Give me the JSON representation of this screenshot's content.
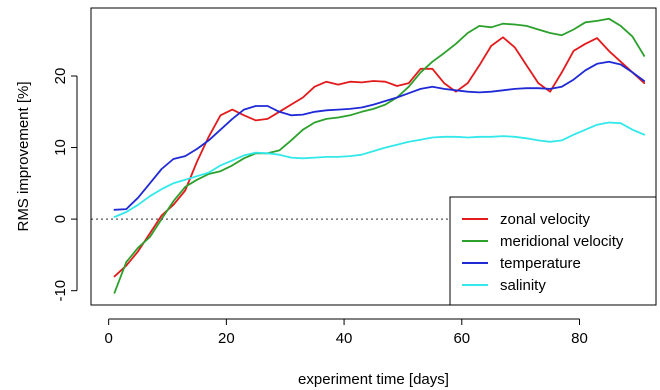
{
  "chart_data": {
    "type": "line",
    "title": "",
    "xlabel": "experiment time [days]",
    "ylabel": "RMS improvement [%]",
    "xlim": [
      -3,
      93
    ],
    "ylim": [
      -12,
      29.5
    ],
    "x_ticks": [
      0,
      20,
      40,
      60,
      80
    ],
    "y_ticks": [
      -10,
      0,
      10,
      20
    ],
    "reference_line": {
      "y": 0,
      "style": "dotted",
      "color": "#555555"
    },
    "grid": false,
    "legend_position": "bottom-right",
    "series": [
      {
        "name": "zonal velocity",
        "color": "#e31a1c",
        "x": [
          1,
          3,
          5,
          7,
          9,
          11,
          13,
          15,
          17,
          19,
          21,
          23,
          25,
          27,
          29,
          31,
          33,
          35,
          37,
          39,
          41,
          43,
          45,
          47,
          49,
          51,
          53,
          55,
          57,
          59,
          61,
          63,
          65,
          67,
          69,
          71,
          73,
          75,
          77,
          79,
          81,
          83,
          85,
          87,
          89,
          91
        ],
        "y": [
          -8,
          -6.5,
          -4.5,
          -2,
          0.5,
          2,
          4,
          8,
          11.5,
          14.5,
          15.3,
          14.5,
          13.8,
          14,
          15,
          16,
          17,
          18.5,
          19.2,
          18.8,
          19.2,
          19.1,
          19.3,
          19.2,
          18.6,
          19,
          21,
          21,
          19,
          17.8,
          19,
          21.5,
          24.2,
          25.4,
          24,
          21.5,
          19,
          17.8,
          20.5,
          23.5,
          24.5,
          25.3,
          23.5,
          22,
          20.5,
          19
        ]
      },
      {
        "name": "meridional velocity",
        "color": "#2ca02c",
        "x": [
          1,
          3,
          5,
          7,
          9,
          11,
          13,
          15,
          17,
          19,
          21,
          23,
          25,
          27,
          29,
          31,
          33,
          35,
          37,
          39,
          41,
          43,
          45,
          47,
          49,
          51,
          53,
          55,
          57,
          59,
          61,
          63,
          65,
          67,
          69,
          71,
          73,
          75,
          77,
          79,
          81,
          83,
          85,
          87,
          89,
          91
        ],
        "y": [
          -10.3,
          -6,
          -4,
          -2.5,
          0,
          2.5,
          4.5,
          5.5,
          6.3,
          6.7,
          7.5,
          8.5,
          9.2,
          9.2,
          9.6,
          11,
          12.5,
          13.5,
          14,
          14.2,
          14.5,
          15,
          15.4,
          16,
          17,
          18.5,
          20.5,
          22,
          23.2,
          24.5,
          26,
          27,
          26.8,
          27.3,
          27.2,
          27,
          26.5,
          26,
          25.7,
          26.5,
          27.5,
          27.7,
          28,
          27,
          25.5,
          22.8
        ]
      },
      {
        "name": "temperature",
        "color": "#1f29d6",
        "x": [
          1,
          3,
          5,
          7,
          9,
          11,
          13,
          15,
          17,
          19,
          21,
          23,
          25,
          27,
          29,
          31,
          33,
          35,
          37,
          39,
          41,
          43,
          45,
          47,
          49,
          51,
          53,
          55,
          57,
          59,
          61,
          63,
          65,
          67,
          69,
          71,
          73,
          75,
          77,
          79,
          81,
          83,
          85,
          87,
          89,
          91
        ],
        "y": [
          1.3,
          1.4,
          3,
          5,
          7,
          8.4,
          8.8,
          9.8,
          11,
          12.5,
          14,
          15.3,
          15.8,
          15.8,
          15,
          14.5,
          14.6,
          15,
          15.2,
          15.3,
          15.4,
          15.6,
          16,
          16.5,
          17,
          17.6,
          18.2,
          18.5,
          18.2,
          18,
          17.8,
          17.7,
          17.8,
          18,
          18.2,
          18.3,
          18.3,
          18.2,
          18.5,
          19.5,
          20.8,
          21.7,
          22,
          21.6,
          20.5,
          19.3
        ]
      },
      {
        "name": "salinity",
        "color": "#33e8ea",
        "x": [
          1,
          3,
          5,
          7,
          9,
          11,
          13,
          15,
          17,
          19,
          21,
          23,
          25,
          27,
          29,
          31,
          33,
          35,
          37,
          39,
          41,
          43,
          45,
          47,
          49,
          51,
          53,
          55,
          57,
          59,
          61,
          63,
          65,
          67,
          69,
          71,
          73,
          75,
          77,
          79,
          81,
          83,
          85,
          87,
          89,
          91
        ],
        "y": [
          0.3,
          1,
          2,
          3.2,
          4.2,
          5,
          5.5,
          6,
          6.5,
          7.5,
          8.2,
          8.9,
          9.3,
          9.2,
          9,
          8.6,
          8.5,
          8.6,
          8.7,
          8.7,
          8.8,
          9,
          9.5,
          10,
          10.4,
          10.8,
          11.1,
          11.4,
          11.5,
          11.5,
          11.4,
          11.5,
          11.5,
          11.6,
          11.5,
          11.3,
          11,
          10.8,
          11,
          11.8,
          12.5,
          13.2,
          13.5,
          13.4,
          12.5,
          11.8
        ]
      }
    ]
  }
}
